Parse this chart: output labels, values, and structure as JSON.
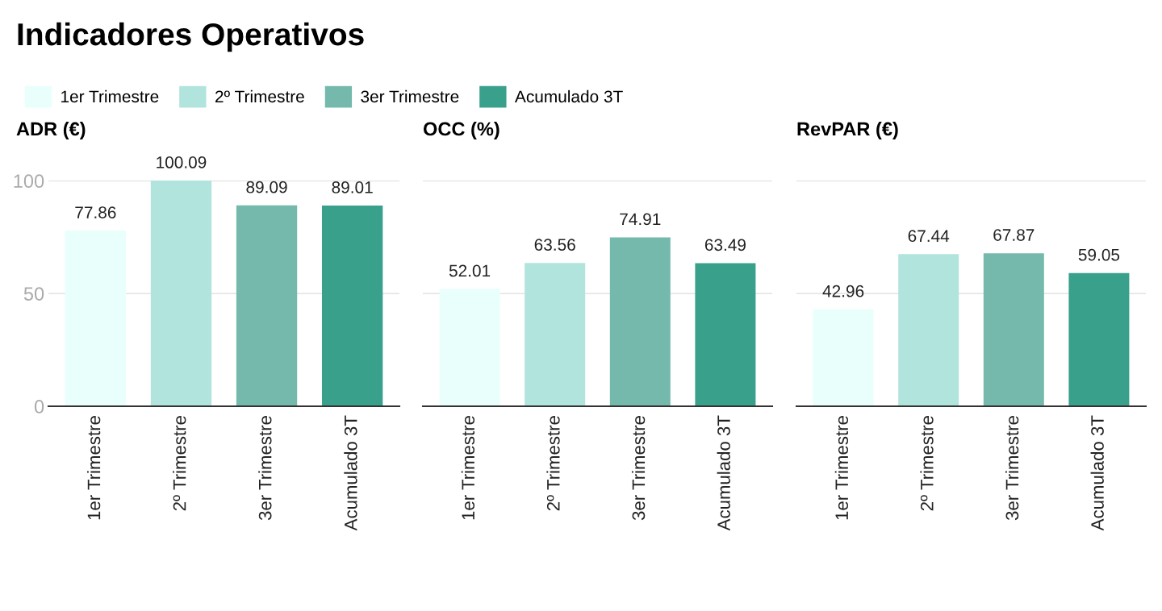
{
  "chart_data": [
    {
      "type": "bar",
      "title": "Indicadores Operativos",
      "subtitle": "ADR (€)",
      "categories": [
        "1er Trimestre",
        "2º Trimestre",
        "3er Trimestre",
        "Acumulado 3T"
      ],
      "series": [
        {
          "name": "1er Trimestre",
          "color": "#e8fffc",
          "values": [
            77.86,
            null,
            null,
            null
          ]
        },
        {
          "name": "2º Trimestre",
          "color": "#b0e4dd",
          "values": [
            null,
            100.09,
            null,
            null
          ]
        },
        {
          "name": "3er Trimestre",
          "color": "#74b9ab",
          "values": [
            null,
            null,
            89.09,
            null
          ]
        },
        {
          "name": "Acumulado 3T",
          "color": "#38a08b",
          "values": [
            null,
            null,
            null,
            89.01
          ]
        }
      ],
      "ylim": [
        0,
        100.09
      ],
      "yticks": [
        0,
        50,
        100
      ],
      "grid": "y",
      "data_labels": true,
      "legend": "top"
    },
    {
      "type": "bar",
      "subtitle": "OCC (%)",
      "categories": [
        "1er Trimestre",
        "2º Trimestre",
        "3er Trimestre",
        "Acumulado 3T"
      ],
      "series": [
        {
          "color": "#e8fffc",
          "values": [
            52.01,
            null,
            null,
            null
          ]
        },
        {
          "color": "#b0e4dd",
          "values": [
            null,
            63.56,
            null,
            null
          ]
        },
        {
          "color": "#74b9ab",
          "values": [
            null,
            null,
            74.91,
            null
          ]
        },
        {
          "color": "#38a08b",
          "values": [
            null,
            null,
            null,
            63.49
          ]
        }
      ],
      "ylim": [
        0,
        100.09
      ],
      "yticks": [
        0,
        50,
        100
      ],
      "grid": "y",
      "data_labels": true,
      "tick_labels": "x"
    },
    {
      "type": "bar",
      "subtitle": "RevPAR (€)",
      "categories": [
        "1er Trimestre",
        "2º Trimestre",
        "3er Trimestre",
        "Acumulado 3T"
      ],
      "series": [
        {
          "color": "#e8fffc",
          "values": [
            42.96,
            null,
            null,
            null
          ]
        },
        {
          "color": "#b0e4dd",
          "values": [
            null,
            67.44,
            null,
            null
          ]
        },
        {
          "color": "#74b9ab",
          "values": [
            null,
            null,
            67.87,
            null
          ]
        },
        {
          "color": "#38a08b",
          "values": [
            null,
            null,
            null,
            59.05
          ]
        }
      ],
      "ylim": [
        0,
        100.09
      ],
      "yticks": [
        0,
        50,
        100
      ],
      "grid": "y",
      "data_labels": true,
      "tick_labels": "x"
    }
  ]
}
